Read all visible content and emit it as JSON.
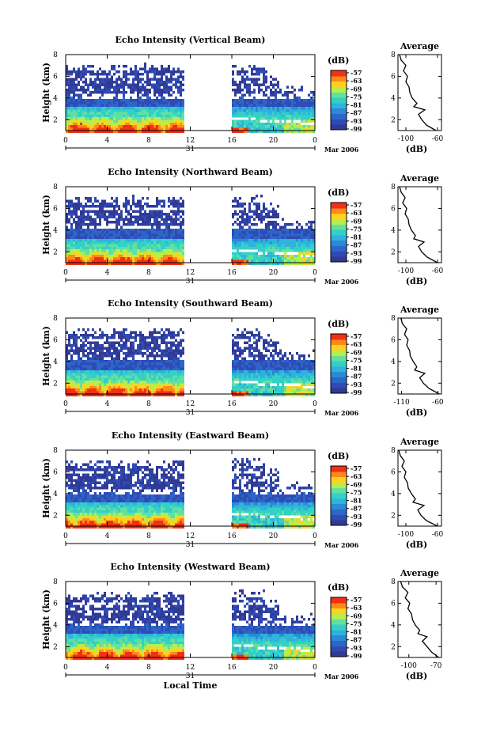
{
  "colors": {
    "scale": [
      "#303a95",
      "#2f4bb5",
      "#2c66c8",
      "#2a8ad6",
      "#2fb2dc",
      "#33d0c8",
      "#62e0a0",
      "#b7ee4c",
      "#ffd21e",
      "#ff8a1a",
      "#f23014"
    ],
    "missing": "#ffffff"
  },
  "xaxis": {
    "ticks": [
      "0",
      "4",
      "8",
      "12",
      "16",
      "20",
      "0"
    ],
    "tick_values": [
      0,
      4,
      8,
      12,
      16,
      20,
      24
    ],
    "range": [
      0,
      24
    ],
    "day_label": "31",
    "date_label": "Mar 2006",
    "title": "Local Time"
  },
  "yaxis": {
    "title": "Height (km)",
    "ticks": [
      "2",
      "4",
      "6",
      "8"
    ],
    "tick_values": [
      2,
      4,
      6,
      8
    ],
    "range": [
      1,
      8
    ]
  },
  "colorbar_unit": "(dB)",
  "profile_xlabel": "(dB)",
  "profile_title": "Average",
  "chart_data": [
    {
      "type": "heatmap",
      "title": "Echo Intensity (Vertical Beam)",
      "xlabel": "",
      "ylabel": "Height (km)",
      "xlim": [
        0,
        24
      ],
      "ylim": [
        1,
        8
      ],
      "colorbar": {
        "unit": "(dB)",
        "ticks": [
          "-57",
          "-63",
          "-69",
          "-75",
          "-81",
          "-87",
          "-93",
          "-99"
        ],
        "tick_values": [
          -57,
          -63,
          -69,
          -75,
          -81,
          -87,
          -93,
          -99
        ]
      },
      "data_gap_hours": [
        11.2,
        15.8
      ],
      "profile": {
        "title": "Average",
        "xlabel": "(dB)",
        "xlim": [
          -110,
          -55
        ],
        "xticks": [
          "-100",
          "-60"
        ],
        "xtick_values": [
          -100,
          -60
        ],
        "yticks": [
          "2",
          "4",
          "6",
          "8"
        ],
        "ytick_values": [
          2,
          4,
          6,
          8
        ],
        "height_km": [
          1.0,
          1.5,
          2.0,
          2.5,
          2.9,
          3.2,
          3.5,
          4.0,
          4.5,
          5.0,
          5.5,
          6.0,
          6.5,
          7.0,
          7.5,
          8.0
        ],
        "value_db": [
          -62,
          -74,
          -80,
          -84,
          -76,
          -90,
          -86,
          -92,
          -95,
          -96,
          -100,
          -98,
          -103,
          -100,
          -106,
          -108
        ]
      }
    },
    {
      "type": "heatmap",
      "title": "Echo Intensity (Northward Beam)",
      "xlabel": "",
      "ylabel": "Height (km)",
      "xlim": [
        0,
        24
      ],
      "ylim": [
        1,
        8
      ],
      "colorbar": {
        "unit": "(dB)",
        "ticks": [
          "-57",
          "-63",
          "-69",
          "-75",
          "-81",
          "-87",
          "-93",
          "-99"
        ],
        "tick_values": [
          -57,
          -63,
          -69,
          -75,
          -81,
          -87,
          -93,
          -99
        ]
      },
      "data_gap_hours": [
        11.2,
        15.8
      ],
      "profile": {
        "title": "Average",
        "xlabel": "(dB)",
        "xlim": [
          -110,
          -55
        ],
        "xticks": [
          "-100",
          "-60"
        ],
        "xtick_values": [
          -100,
          -60
        ],
        "yticks": [
          "2",
          "4",
          "6",
          "8"
        ],
        "ytick_values": [
          2,
          4,
          6,
          8
        ],
        "height_km": [
          1.0,
          1.5,
          2.0,
          2.5,
          2.9,
          3.2,
          3.5,
          4.0,
          4.5,
          5.0,
          5.5,
          6.0,
          6.5,
          7.0,
          7.5,
          8.0
        ],
        "value_db": [
          -60,
          -73,
          -80,
          -84,
          -77,
          -90,
          -88,
          -93,
          -96,
          -97,
          -101,
          -99,
          -104,
          -101,
          -106,
          -108
        ]
      }
    },
    {
      "type": "heatmap",
      "title": "Echo Intensity (Southward Beam)",
      "xlabel": "",
      "ylabel": "Height (km)",
      "xlim": [
        0,
        24
      ],
      "ylim": [
        1,
        8
      ],
      "colorbar": {
        "unit": "(dB)",
        "ticks": [
          "-57",
          "-63",
          "-69",
          "-75",
          "-81",
          "-87",
          "-93",
          "-99"
        ],
        "tick_values": [
          -57,
          -63,
          -69,
          -75,
          -81,
          -87,
          -93,
          -99
        ]
      },
      "data_gap_hours": [
        11.2,
        15.8
      ],
      "profile": {
        "title": "Average",
        "xlabel": "(dB)",
        "xlim": [
          -115,
          -55
        ],
        "xticks": [
          "-110",
          "-60"
        ],
        "xtick_values": [
          -110,
          -60
        ],
        "yticks": [
          "2",
          "4",
          "6",
          "8"
        ],
        "ytick_values": [
          2,
          4,
          6,
          8
        ],
        "height_km": [
          1.0,
          1.5,
          2.0,
          2.5,
          2.9,
          3.2,
          3.5,
          4.0,
          4.5,
          5.0,
          5.5,
          6.0,
          6.5,
          7.0,
          7.5,
          8.0
        ],
        "value_db": [
          -58,
          -72,
          -80,
          -85,
          -78,
          -92,
          -89,
          -94,
          -98,
          -99,
          -103,
          -101,
          -106,
          -103,
          -109,
          -111
        ]
      }
    },
    {
      "type": "heatmap",
      "title": "Echo Intensity (Eastward Beam)",
      "xlabel": "",
      "ylabel": "Height (km)",
      "xlim": [
        0,
        24
      ],
      "ylim": [
        1,
        8
      ],
      "colorbar": {
        "unit": "(dB)",
        "ticks": [
          "-57",
          "-63",
          "-69",
          "-75",
          "-81",
          "-87",
          "-93",
          "-99"
        ],
        "tick_values": [
          -57,
          -63,
          -69,
          -75,
          -81,
          -87,
          -93,
          -99
        ]
      },
      "data_gap_hours": [
        11.2,
        15.8
      ],
      "profile": {
        "title": "Average",
        "xlabel": "(dB)",
        "xlim": [
          -110,
          -55
        ],
        "xticks": [
          "-100",
          "-60"
        ],
        "xtick_values": [
          -100,
          -60
        ],
        "yticks": [
          "2",
          "4",
          "6",
          "8"
        ],
        "ytick_values": [
          2,
          4,
          6,
          8
        ],
        "height_km": [
          1.0,
          1.5,
          2.0,
          2.5,
          2.9,
          3.2,
          3.5,
          4.0,
          4.5,
          5.0,
          5.5,
          6.0,
          6.5,
          7.0,
          7.5,
          8.0
        ],
        "value_db": [
          -60,
          -74,
          -81,
          -85,
          -77,
          -91,
          -88,
          -93,
          -97,
          -98,
          -102,
          -100,
          -105,
          -102,
          -107,
          -109
        ]
      }
    },
    {
      "type": "heatmap",
      "title": "Echo Intensity (Westward Beam)",
      "xlabel": "Local Time",
      "ylabel": "Height (km)",
      "xlim": [
        0,
        24
      ],
      "ylim": [
        1,
        8
      ],
      "colorbar": {
        "unit": "(dB)",
        "ticks": [
          "-57",
          "-63",
          "-69",
          "-75",
          "-81",
          "-87",
          "-93",
          "-99"
        ],
        "tick_values": [
          -57,
          -63,
          -69,
          -75,
          -81,
          -87,
          -93,
          -99
        ]
      },
      "data_gap_hours": [
        11.2,
        15.8
      ],
      "profile": {
        "title": "Average",
        "xlabel": "(dB)",
        "xlim": [
          -112,
          -64
        ],
        "xticks": [
          "-100",
          "-70"
        ],
        "xtick_values": [
          -100,
          -70
        ],
        "yticks": [
          "2",
          "4",
          "6",
          "8"
        ],
        "ytick_values": [
          2,
          4,
          6,
          8
        ],
        "height_km": [
          1.0,
          1.5,
          2.0,
          2.5,
          2.9,
          3.2,
          3.5,
          4.0,
          4.5,
          5.0,
          5.5,
          6.0,
          6.5,
          7.0,
          7.5,
          8.0
        ],
        "value_db": [
          -67,
          -75,
          -80,
          -85,
          -80,
          -90,
          -88,
          -93,
          -96,
          -97,
          -101,
          -99,
          -104,
          -101,
          -107,
          -109
        ]
      }
    }
  ]
}
